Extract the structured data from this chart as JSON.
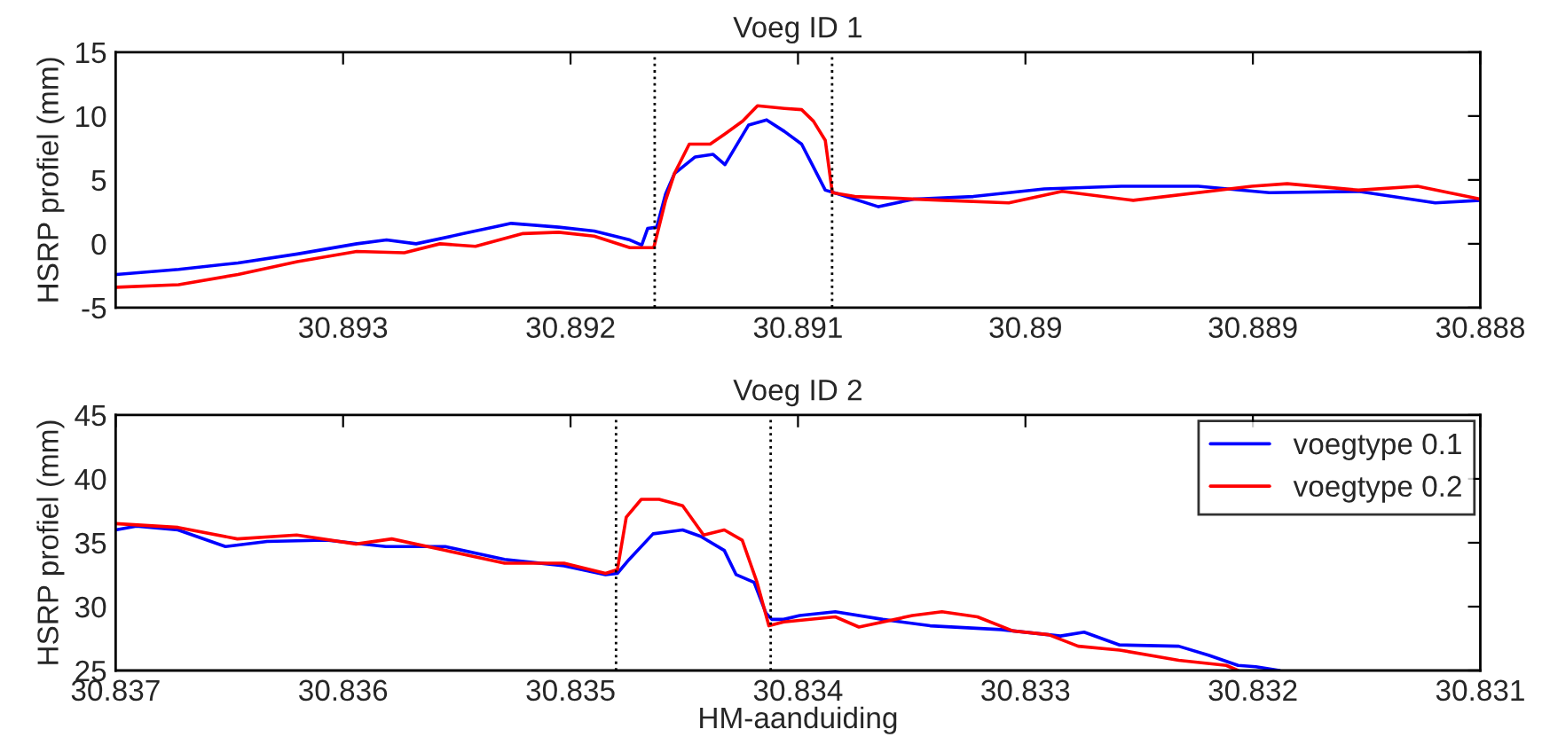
{
  "chart_data": [
    {
      "type": "line",
      "title": "Voeg ID 1",
      "ylabel": "HSRP profiel (mm)",
      "xlim": [
        30.894,
        30.888
      ],
      "xticks": [
        30.893,
        30.892,
        30.891,
        30.89,
        30.889,
        30.888
      ],
      "ylim": [
        -5,
        15
      ],
      "yticks": [
        -5,
        0,
        5,
        10,
        15
      ],
      "grid": false,
      "legend": false,
      "marker": "none",
      "line_style": "solid",
      "ref_lines": [
        {
          "axis": "x",
          "value": 30.89163,
          "color": "#000000",
          "line_style": "dotted"
        },
        {
          "axis": "x",
          "value": 30.89085,
          "color": "#000000",
          "line_style": "dotted"
        }
      ],
      "series": [
        {
          "color": "#0000ff",
          "x": [
            30.893997,
            30.893723,
            30.893462,
            30.893201,
            30.89294,
            30.892809,
            30.892679,
            30.89247,
            30.892261,
            30.892052,
            30.891896,
            30.891739,
            30.891687,
            30.891661,
            30.891621,
            30.891582,
            30.891543,
            30.891452,
            30.891373,
            30.891321,
            30.891217,
            30.891138,
            30.89106,
            30.890984,
            30.890932,
            30.89088,
            30.890841,
            30.890646,
            30.89049,
            30.890229,
            30.889917,
            30.889578,
            30.88924,
            30.888927,
            30.888536,
            30.888198,
            30.888
          ],
          "values": [
            -2.4,
            -2.0,
            -1.5,
            -0.8,
            0.0,
            0.3,
            0.0,
            0.8,
            1.6,
            1.3,
            1.0,
            0.3,
            -0.1,
            1.2,
            1.3,
            3.9,
            5.5,
            6.8,
            7.0,
            6.2,
            9.3,
            9.7,
            8.8,
            7.8,
            6.0,
            4.2,
            4.0,
            2.9,
            3.5,
            3.7,
            4.3,
            4.5,
            4.5,
            4.0,
            4.1,
            3.2,
            3.4
          ]
        },
        {
          "color": "#ff0000",
          "x": [
            30.893997,
            30.893723,
            30.893462,
            30.893201,
            30.89294,
            30.892731,
            30.892574,
            30.892418,
            30.892209,
            30.892052,
            30.891896,
            30.891739,
            30.891634,
            30.891582,
            30.891543,
            30.891478,
            30.891386,
            30.891321,
            30.891243,
            30.891178,
            30.89106,
            30.890984,
            30.890932,
            30.89088,
            30.890849,
            30.89075,
            30.890359,
            30.890073,
            30.889839,
            30.889526,
            30.889005,
            30.888849,
            30.888536,
            30.888276,
            30.888
          ],
          "values": [
            -3.4,
            -3.2,
            -2.4,
            -1.4,
            -0.6,
            -0.7,
            0.0,
            -0.2,
            0.8,
            0.9,
            0.6,
            -0.3,
            -0.3,
            3.4,
            5.5,
            7.8,
            7.8,
            8.6,
            9.6,
            10.8,
            10.6,
            10.5,
            9.6,
            8.1,
            4.0,
            3.7,
            3.4,
            3.2,
            4.1,
            3.4,
            4.5,
            4.7,
            4.2,
            4.5,
            3.5
          ]
        }
      ]
    },
    {
      "type": "line",
      "title": "Voeg ID 2",
      "xlabel": "HM-aanduiding",
      "ylabel": "HSRP profiel (mm)",
      "xlim": [
        30.837,
        30.831
      ],
      "xticks": [
        30.837,
        30.836,
        30.835,
        30.834,
        30.833,
        30.832,
        30.831
      ],
      "ylim": [
        25,
        45
      ],
      "yticks": [
        25,
        30,
        35,
        40,
        45
      ],
      "grid": false,
      "legend": "top right",
      "marker": "none",
      "line_style": "solid",
      "ref_lines": [
        {
          "axis": "x",
          "value": 30.8348,
          "color": "#000000",
          "line_style": "dotted"
        },
        {
          "axis": "x",
          "value": 30.83412,
          "color": "#000000",
          "line_style": "dotted"
        }
      ],
      "series": [
        {
          "name": "voegtype 0.1",
          "color": "#0000ff",
          "x": [
            30.837,
            30.836909,
            30.836726,
            30.836517,
            30.836334,
            30.836073,
            30.835812,
            30.835551,
            30.83529,
            30.835029,
            30.834846,
            30.834794,
            30.834742,
            30.834637,
            30.834507,
            30.834428,
            30.834324,
            30.834272,
            30.834193,
            30.834141,
            30.834115,
            30.834063,
            30.833992,
            30.833836,
            30.833627,
            30.833419,
            30.833107,
            30.832846,
            30.832742,
            30.832586,
            30.832326,
            30.832195,
            30.832065,
            30.831987,
            30.831883
          ],
          "values": [
            36.0,
            36.3,
            36.0,
            34.7,
            35.1,
            35.2,
            34.7,
            34.7,
            33.7,
            33.2,
            32.5,
            32.6,
            33.7,
            35.7,
            36.0,
            35.5,
            34.4,
            32.5,
            31.9,
            29.5,
            29.0,
            29.0,
            29.3,
            29.6,
            29.0,
            28.5,
            28.2,
            27.7,
            28.0,
            27.0,
            26.9,
            26.2,
            25.4,
            25.3,
            25.0
          ]
        },
        {
          "name": "voegtype 0.2",
          "color": "#ff0000",
          "x": [
            30.837,
            30.836726,
            30.836465,
            30.836204,
            30.835943,
            30.835786,
            30.835551,
            30.83529,
            30.835029,
            30.834846,
            30.834794,
            30.834755,
            30.834689,
            30.834611,
            30.834507,
            30.834415,
            30.834324,
            30.834245,
            30.83418,
            30.834128,
            30.834063,
            30.833836,
            30.833732,
            30.833497,
            30.833367,
            30.833211,
            30.833055,
            30.832898,
            30.832768,
            30.832586,
            30.832326,
            30.832117,
            30.832065
          ],
          "values": [
            36.5,
            36.2,
            35.3,
            35.6,
            34.9,
            35.3,
            34.4,
            33.4,
            33.4,
            32.6,
            32.9,
            37.0,
            38.4,
            38.4,
            37.9,
            35.6,
            36.0,
            35.2,
            31.9,
            28.5,
            28.8,
            29.2,
            28.4,
            29.3,
            29.6,
            29.2,
            28.1,
            27.8,
            26.9,
            26.6,
            25.8,
            25.4,
            25.0
          ]
        }
      ]
    }
  ]
}
